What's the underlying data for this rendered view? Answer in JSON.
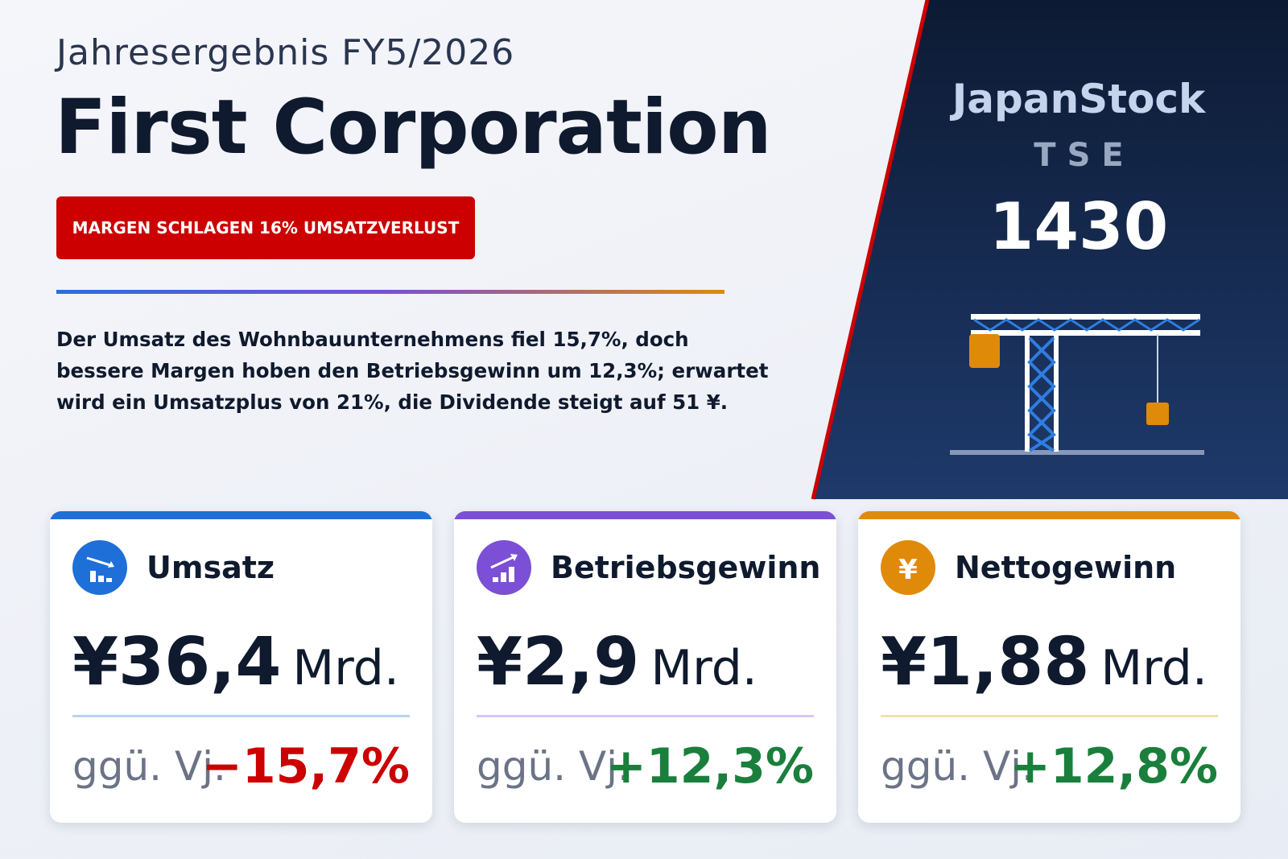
{
  "header": {
    "subtitle": "Jahresergebnis FY5/2026",
    "title": "First Corporation",
    "badge": "MARGEN SCHLAGEN 16% UMSATZVERLUST",
    "description": "Der Umsatz des Wohnbauunternehmens fiel 15,7%, doch bessere Margen hoben den Betriebsgewinn um 12,3%; erwartet wird ein Umsatzplus von 21%, die Dividende steigt auf 51 ¥."
  },
  "ticker": {
    "brand": "JapanStock",
    "exchange": "TSE",
    "code": "1430"
  },
  "cards": [
    {
      "label": "Umsatz",
      "value": "¥36,4",
      "unit": "Mrd.",
      "change_label": "ggü. Vj.",
      "change": "−15,7%"
    },
    {
      "label": "Betriebsgewinn",
      "value": "¥2,9",
      "unit": "Mrd.",
      "change_label": "ggü. Vj.",
      "change": "+12,3%"
    },
    {
      "label": "Nettogewinn",
      "value": "¥1,88",
      "unit": "Mrd.",
      "change_label": "ggü. Vj.",
      "change": "+12,8%"
    }
  ]
}
